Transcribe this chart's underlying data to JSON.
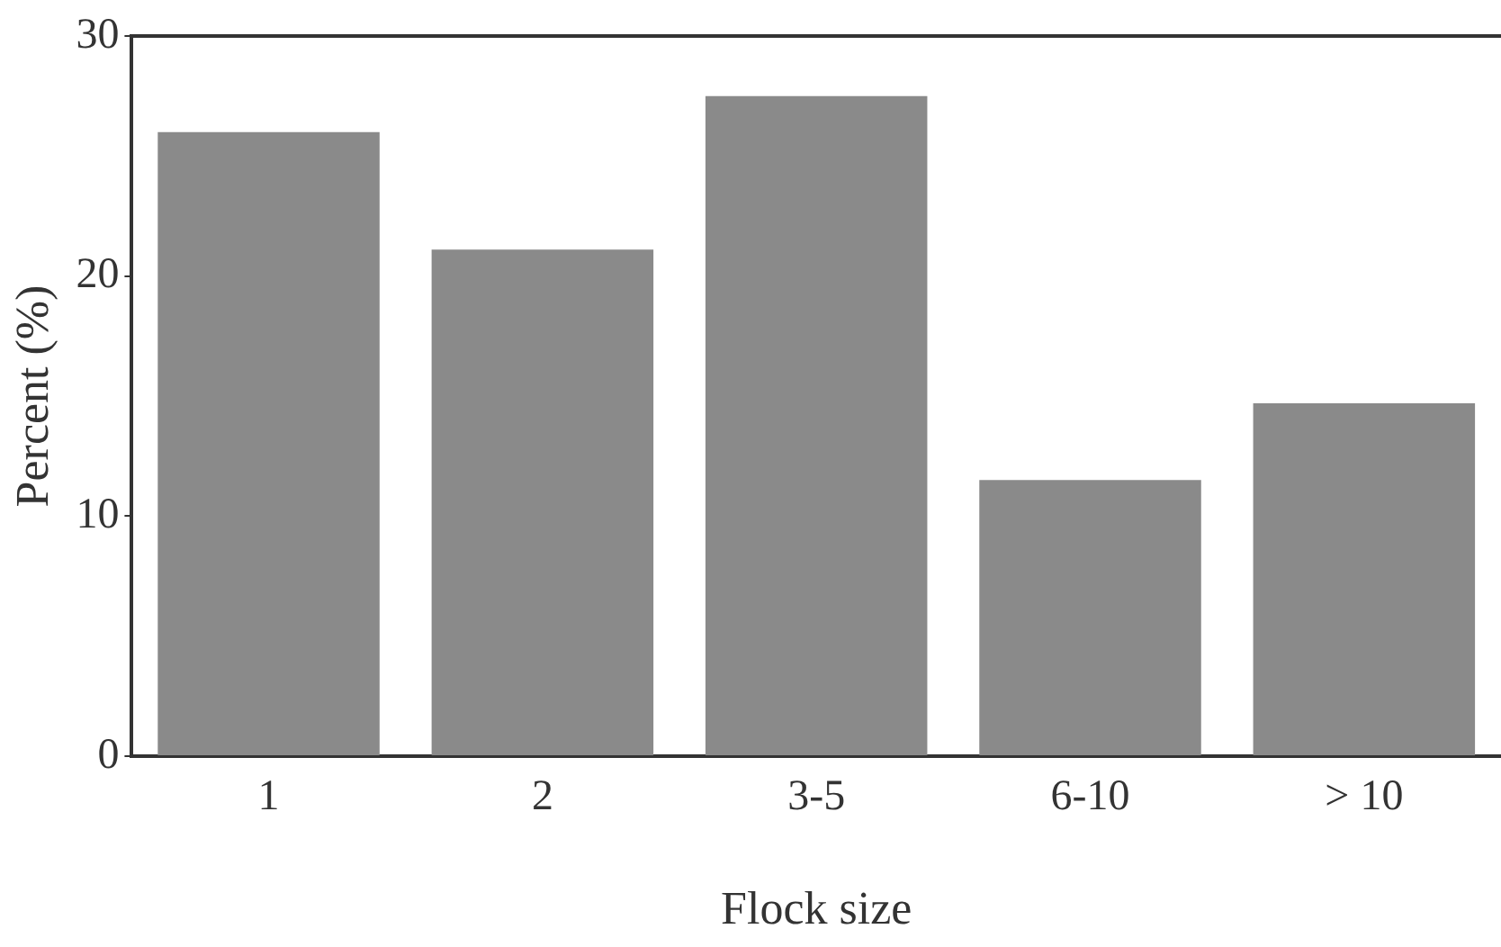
{
  "chart_data": {
    "type": "bar",
    "xlabel": "Flock size",
    "ylabel": "Percent (%)",
    "categories": [
      "1",
      "2",
      "3-5",
      "6-10",
      "> 10"
    ],
    "values": [
      26,
      21.1,
      27.5,
      11.5,
      14.7
    ],
    "color": "#8a8a8a",
    "ylim": [
      0,
      30
    ],
    "yticks": [
      0,
      10,
      20,
      30
    ],
    "grid": false,
    "legend": false
  }
}
